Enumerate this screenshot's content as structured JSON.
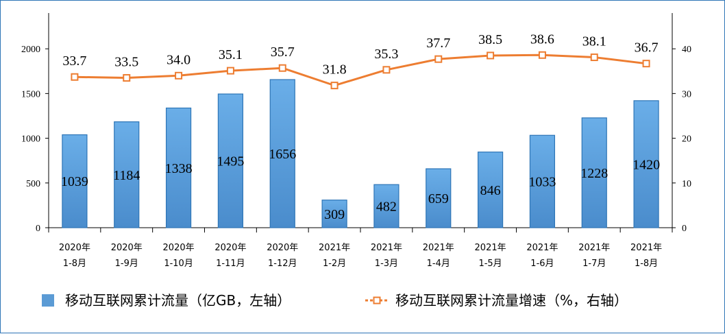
{
  "chart_data": {
    "type": "bar+line",
    "categories": [
      [
        "2020年",
        "1-8月"
      ],
      [
        "2020年",
        "1-9月"
      ],
      [
        "2020年",
        "1-10月"
      ],
      [
        "2020年",
        "1-11月"
      ],
      [
        "2020年",
        "1-12月"
      ],
      [
        "2021年",
        "1-2月"
      ],
      [
        "2021年",
        "1-3月"
      ],
      [
        "2021年",
        "1-4月"
      ],
      [
        "2021年",
        "1-5月"
      ],
      [
        "2021年",
        "1-6月"
      ],
      [
        "2021年",
        "1-7月"
      ],
      [
        "2021年",
        "1-8月"
      ]
    ],
    "series": [
      {
        "name": "移动互联网累计流量（亿GB，左轴）",
        "kind": "bar",
        "axis": "left",
        "color": "#5b9bd5",
        "values": [
          1039,
          1184,
          1338,
          1495,
          1656,
          309,
          482,
          659,
          846,
          1033,
          1228,
          1420
        ]
      },
      {
        "name": "移动互联网累计流量增速（%，右轴）",
        "kind": "line",
        "axis": "right",
        "color": "#ed7d31",
        "values": [
          33.7,
          33.5,
          34.0,
          35.1,
          35.7,
          31.8,
          35.3,
          37.7,
          38.5,
          38.6,
          38.1,
          36.7
        ],
        "labels": [
          "33.7",
          "33.5",
          "34.0",
          "35.1",
          "35.7",
          "31.8",
          "35.3",
          "37.7",
          "38.5",
          "38.6",
          "38.1",
          "36.7"
        ]
      }
    ],
    "y_left": {
      "min": 0,
      "max": 2400,
      "ticks": [
        0,
        500,
        1000,
        1500,
        2000
      ]
    },
    "y_right": {
      "min": 0,
      "max": 48,
      "ticks": [
        0,
        10,
        20,
        30,
        40
      ]
    },
    "legend": "bottom",
    "grid": false
  }
}
